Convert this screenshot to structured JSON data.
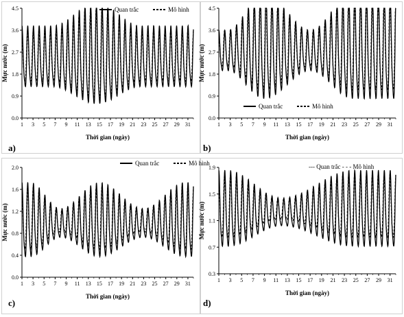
{
  "panel_labels": [
    "a)",
    "b)",
    "c)",
    "d)"
  ],
  "chart_data": [
    {
      "type": "line",
      "panel": "a)",
      "xlabel": "Thời gian (ngày)",
      "ylabel": "Mực nước (m)",
      "ylim": [
        0,
        4.5
      ],
      "yticks": [
        "0.0",
        "0.9",
        "1.8",
        "2.7",
        "3.6",
        "4.5"
      ],
      "xticks": [
        "1",
        "3",
        "5",
        "7",
        "9",
        "11",
        "13",
        "15",
        "17",
        "19",
        "21",
        "23",
        "25",
        "27",
        "29",
        "31"
      ],
      "xlim": [
        1,
        32
      ],
      "legend": {
        "position": "top-center",
        "entries": [
          "Quan trắc",
          "Mô hình"
        ]
      },
      "series": [
        {
          "name": "Quan trắc",
          "style": "solid",
          "mean": 2.35,
          "amp_min": 1.2,
          "amp_max": 2.0,
          "tide_peak_days": [
            14.5
          ],
          "tide_trough_days": [
            6.5,
            22.5,
            30.5
          ],
          "shift": 0.0
        },
        {
          "name": "Mô hình",
          "style": "dashed",
          "mean": 2.4,
          "amp_min": 1.0,
          "amp_max": 1.8,
          "tide_peak_days": [
            14.5
          ],
          "tide_trough_days": [
            6.5,
            22.5,
            30.5
          ],
          "shift": 0.05
        }
      ]
    },
    {
      "type": "line",
      "panel": "b)",
      "xlabel": "Thời gian (ngày)",
      "ylabel": "Mực nước (m)",
      "ylim": [
        0,
        4.5
      ],
      "yticks": [
        "0.0",
        "0.9",
        "1.8",
        "2.7",
        "3.6",
        "4.5"
      ],
      "xticks": [
        "1",
        "3",
        "5",
        "7",
        "9",
        "11",
        "13",
        "15",
        "17",
        "19",
        "21",
        "23",
        "25",
        "27",
        "29",
        "31"
      ],
      "xlim": [
        1,
        32
      ],
      "legend": {
        "position": "bottom-center",
        "entries": [
          "Quan trắc",
          "Mô hình"
        ]
      },
      "series": [
        {
          "name": "Quan trắc",
          "style": "solid",
          "mean": 2.65,
          "amp_min": 0.8,
          "amp_max": 2.1,
          "tide_peak_days": [
            9.0,
            24.5
          ],
          "tide_trough_days": [
            2.5,
            17.0
          ],
          "shift": 0.0
        },
        {
          "name": "Mô hình",
          "style": "dashed",
          "mean": 2.75,
          "amp_min": 0.7,
          "amp_max": 1.8,
          "tide_peak_days": [
            9.0,
            24.5
          ],
          "tide_trough_days": [
            2.5,
            17.0
          ],
          "shift": 0.05
        }
      ]
    },
    {
      "type": "line",
      "panel": "c)",
      "xlabel": "Thời gian (ngày)",
      "ylabel": "Mực nước (m)",
      "ylim": [
        0,
        2.0
      ],
      "yticks": [
        "0.0",
        "0.4",
        "0.8",
        "1.2",
        "1.6",
        "2.0"
      ],
      "xticks": [
        "1",
        "3",
        "5",
        "7",
        "9",
        "11",
        "13",
        "15",
        "17",
        "19",
        "21",
        "23",
        "25",
        "27",
        "29",
        "31"
      ],
      "xlim": [
        1,
        32
      ],
      "legend": {
        "position": "top-right",
        "entries": [
          "Quan trắc",
          "Mô hình"
        ]
      },
      "series": [
        {
          "name": "Quan trắc",
          "style": "solid",
          "mean": 0.95,
          "amp_min": 0.25,
          "amp_max": 0.65,
          "tide_peak_days": [
            2.5,
            15.0,
            30.5
          ],
          "tide_trough_days": [
            8.0,
            23.0
          ],
          "shift": 0.0
        },
        {
          "name": "Mô hình",
          "style": "dashed",
          "mean": 1.0,
          "amp_min": 0.2,
          "amp_max": 0.55,
          "tide_peak_days": [
            2.5,
            15.0,
            30.5
          ],
          "tide_trough_days": [
            8.0,
            23.0
          ],
          "shift": 0.05
        }
      ]
    },
    {
      "type": "line",
      "panel": "d)",
      "xlabel": "Thời gian (ngày)",
      "ylabel": "Mực nước (m)",
      "ylim": [
        0.3,
        1.9
      ],
      "yticks": [
        "0.3",
        "0.7",
        "1.1",
        "1.5",
        "1.9"
      ],
      "xticks": [
        "1",
        "3",
        "5",
        "7",
        "9",
        "11",
        "13",
        "15",
        "17",
        "19",
        "21",
        "23",
        "25",
        "27",
        "29",
        "31"
      ],
      "xlim": [
        1,
        32
      ],
      "legend": {
        "position": "top-right",
        "text": "--- Quan trắc - - - Mô hình",
        "entries": [
          "Quan trắc",
          "Mô hình"
        ]
      },
      "series": [
        {
          "name": "Quan trắc",
          "style": "solid",
          "mean": 1.2,
          "amp_min": 0.2,
          "amp_max": 0.55,
          "tide_peak_days": [
            2.5,
            24.5
          ],
          "tide_trough_days": [
            12.0
          ],
          "shift": 0.0
        },
        {
          "name": "Mô hình",
          "style": "dashed",
          "mean": 1.25,
          "amp_min": 0.15,
          "amp_max": 0.45,
          "tide_peak_days": [
            2.5,
            24.5
          ],
          "tide_trough_days": [
            12.0
          ],
          "shift": 0.05
        }
      ]
    }
  ]
}
